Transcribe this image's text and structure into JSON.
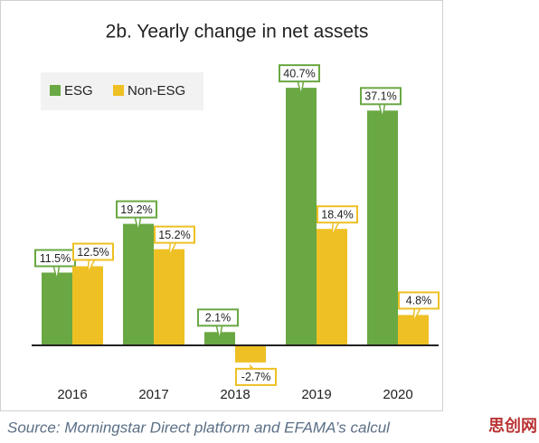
{
  "chart_data": {
    "type": "bar",
    "title": "2b. Yearly change in net assets",
    "categories": [
      "2016",
      "2017",
      "2018",
      "2019",
      "2020"
    ],
    "series": [
      {
        "name": "ESG",
        "color": "#6aa843",
        "values": [
          11.5,
          19.2,
          2.1,
          40.7,
          37.1
        ],
        "value_labels": [
          "11.5%",
          "19.2%",
          "2.1%",
          "40.7%",
          "37.1%"
        ]
      },
      {
        "name": "Non-ESG",
        "color": "#eec024",
        "values": [
          12.5,
          15.2,
          -2.7,
          18.4,
          4.8
        ],
        "value_labels": [
          "12.5%",
          "15.2%",
          "-2.7%",
          "18.4%",
          "4.8%"
        ]
      }
    ],
    "ylim": [
      -5,
      45
    ],
    "legend": "top-left",
    "source": "Source: Morningstar Direct platform and EFAMA’s calcul",
    "watermark": "思创网"
  }
}
